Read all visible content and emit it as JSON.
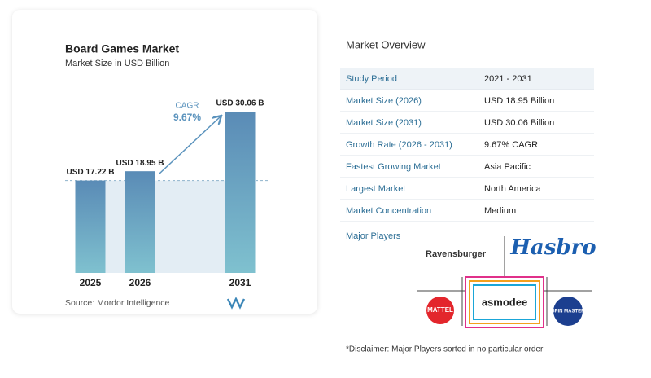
{
  "chart_data": {
    "type": "bar",
    "title": "Board Games Market",
    "subtitle": "Market Size in USD Billion",
    "categories": [
      "2025",
      "2026",
      "2031"
    ],
    "values": [
      17.22,
      18.95,
      30.06
    ],
    "value_labels": [
      "USD 17.22 B",
      "USD 18.95 B",
      "USD 30.06 B"
    ],
    "annotation": {
      "label": "CAGR",
      "value": "9.67%"
    },
    "source": "Source:  Mordor Intelligence"
  },
  "overview": {
    "title": "Market Overview",
    "rows": [
      [
        "Study Period",
        "2021 - 2031"
      ],
      [
        "Market Size (2026)",
        "USD 18.95 Billion"
      ],
      [
        "Market Size (2031)",
        "USD 30.06 Billion"
      ],
      [
        "Growth Rate (2026 - 2031)",
        "9.67% CAGR"
      ],
      [
        "Fastest Growing Market",
        "Asia Pacific"
      ],
      [
        "Largest Market",
        "North America"
      ],
      [
        "Market Concentration",
        "Medium"
      ]
    ]
  },
  "players": {
    "title": "Major Players",
    "names": [
      "Ravensburger",
      "Hasbro",
      "MATTEL",
      "asmodee",
      "SPIN MASTER"
    ]
  },
  "disclaimer": "*Disclaimer: Major Players sorted in no particular order"
}
